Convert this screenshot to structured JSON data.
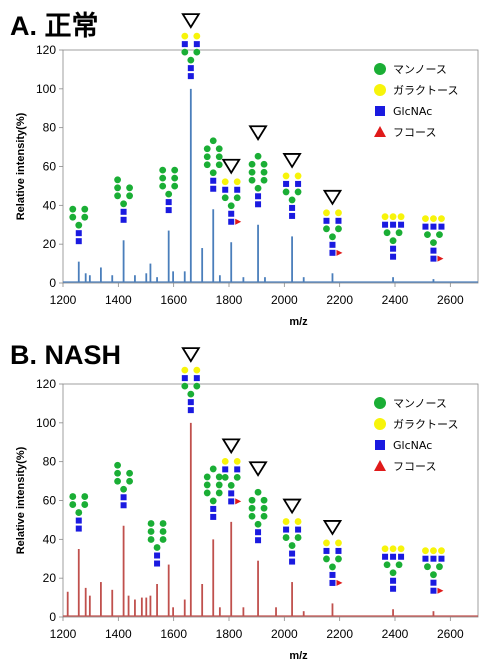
{
  "chart_data": [
    {
      "type": "line",
      "title": "A. 正常",
      "xlabel": "m/z",
      "ylabel": "Relative intensity(%)",
      "xlim": [
        1200,
        2700
      ],
      "ylim": [
        0,
        120
      ],
      "x_ticks": [
        "1200",
        "1400",
        "1600",
        "1800",
        "2000",
        "2200",
        "2400",
        "2600"
      ],
      "y_ticks": [
        "0",
        "20",
        "40",
        "60",
        "80",
        "100",
        "120"
      ],
      "color": "#4a7ebb",
      "peaks": [
        {
          "x": 1257,
          "y": 11
        },
        {
          "x": 1282,
          "y": 5
        },
        {
          "x": 1297,
          "y": 4
        },
        {
          "x": 1337,
          "y": 8
        },
        {
          "x": 1378,
          "y": 4
        },
        {
          "x": 1419,
          "y": 22
        },
        {
          "x": 1460,
          "y": 4
        },
        {
          "x": 1501,
          "y": 5
        },
        {
          "x": 1516,
          "y": 10
        },
        {
          "x": 1540,
          "y": 3
        },
        {
          "x": 1582,
          "y": 27
        },
        {
          "x": 1598,
          "y": 6
        },
        {
          "x": 1640,
          "y": 6
        },
        {
          "x": 1662,
          "y": 100
        },
        {
          "x": 1703,
          "y": 18
        },
        {
          "x": 1743,
          "y": 38
        },
        {
          "x": 1767,
          "y": 4
        },
        {
          "x": 1808,
          "y": 21
        },
        {
          "x": 1852,
          "y": 3
        },
        {
          "x": 1905,
          "y": 30
        },
        {
          "x": 1930,
          "y": 3
        },
        {
          "x": 2028,
          "y": 24
        },
        {
          "x": 2070,
          "y": 3
        },
        {
          "x": 2174,
          "y": 5
        },
        {
          "x": 2393,
          "y": 3
        },
        {
          "x": 2539,
          "y": 2
        }
      ],
      "marked_peaks": [
        1662,
        1808,
        1905,
        2028,
        2174
      ],
      "glycans": [
        {
          "x": 1257,
          "y": 20,
          "man": 5,
          "gal": 0,
          "fuc": false
        },
        {
          "x": 1419,
          "y": 31,
          "man": 6,
          "gal": 0,
          "fuc": false
        },
        {
          "x": 1582,
          "y": 36,
          "man": 7,
          "gal": 0,
          "fuc": false
        },
        {
          "x": 1662,
          "y": 105,
          "man": 3,
          "gal": 2,
          "fuc": false
        },
        {
          "x": 1743,
          "y": 47,
          "man": 8,
          "gal": 0,
          "fuc": false
        },
        {
          "x": 1808,
          "y": 30,
          "man": 3,
          "gal": 2,
          "fuc": true
        },
        {
          "x": 1905,
          "y": 39,
          "man": 9,
          "gal": 0,
          "fuc": false
        },
        {
          "x": 2028,
          "y": 33,
          "man": 3,
          "gal": 2,
          "fuc": false
        },
        {
          "x": 2174,
          "y": 14,
          "man": 3,
          "gal": 2,
          "fuc": true
        },
        {
          "x": 2393,
          "y": 12,
          "man": 3,
          "gal": 3,
          "fuc": false
        },
        {
          "x": 2539,
          "y": 11,
          "man": 3,
          "gal": 3,
          "fuc": true
        }
      ],
      "legend": [
        {
          "label": "マンノース",
          "shape": "circle",
          "color": "#1aae35"
        },
        {
          "label": "ガラクトース",
          "shape": "circle",
          "color": "#f7f40a"
        },
        {
          "label": "GlcNAc",
          "shape": "square",
          "color": "#1a1ae0"
        },
        {
          "label": "フコース",
          "shape": "triangle",
          "color": "#e01a1a"
        }
      ]
    },
    {
      "type": "line",
      "title": "B. NASH",
      "xlabel": "m/z",
      "ylabel": "Relative intensity(%)",
      "xlim": [
        1200,
        2700
      ],
      "ylim": [
        0,
        120
      ],
      "x_ticks": [
        "1200",
        "1400",
        "1600",
        "1800",
        "2000",
        "2200",
        "2400",
        "2600"
      ],
      "y_ticks": [
        "0",
        "20",
        "40",
        "60",
        "80",
        "100",
        "120"
      ],
      "color": "#c0504d",
      "peaks": [
        {
          "x": 1217,
          "y": 13
        },
        {
          "x": 1257,
          "y": 35
        },
        {
          "x": 1282,
          "y": 15
        },
        {
          "x": 1297,
          "y": 11
        },
        {
          "x": 1337,
          "y": 18
        },
        {
          "x": 1378,
          "y": 14
        },
        {
          "x": 1419,
          "y": 47
        },
        {
          "x": 1437,
          "y": 11
        },
        {
          "x": 1460,
          "y": 9
        },
        {
          "x": 1485,
          "y": 10
        },
        {
          "x": 1501,
          "y": 10
        },
        {
          "x": 1516,
          "y": 11
        },
        {
          "x": 1540,
          "y": 17
        },
        {
          "x": 1582,
          "y": 27
        },
        {
          "x": 1598,
          "y": 5
        },
        {
          "x": 1640,
          "y": 9
        },
        {
          "x": 1662,
          "y": 100
        },
        {
          "x": 1703,
          "y": 17
        },
        {
          "x": 1743,
          "y": 40
        },
        {
          "x": 1767,
          "y": 5
        },
        {
          "x": 1808,
          "y": 49
        },
        {
          "x": 1852,
          "y": 5
        },
        {
          "x": 1905,
          "y": 29
        },
        {
          "x": 1970,
          "y": 5
        },
        {
          "x": 2028,
          "y": 18
        },
        {
          "x": 2070,
          "y": 3
        },
        {
          "x": 2174,
          "y": 7
        },
        {
          "x": 2393,
          "y": 4
        },
        {
          "x": 2539,
          "y": 3
        }
      ],
      "marked_peaks": [
        1662,
        1808,
        1905,
        2028,
        2174
      ],
      "glycans": [
        {
          "x": 1257,
          "y": 44,
          "man": 5,
          "gal": 0,
          "fuc": false
        },
        {
          "x": 1419,
          "y": 56,
          "man": 6,
          "gal": 0,
          "fuc": false
        },
        {
          "x": 1540,
          "y": 26,
          "man": 7,
          "gal": 0,
          "fuc": false
        },
        {
          "x": 1662,
          "y": 105,
          "man": 3,
          "gal": 2,
          "fuc": false
        },
        {
          "x": 1743,
          "y": 50,
          "man": 8,
          "gal": 0,
          "fuc": false
        },
        {
          "x": 1808,
          "y": 58,
          "man": 3,
          "gal": 2,
          "fuc": true
        },
        {
          "x": 1905,
          "y": 38,
          "man": 9,
          "gal": 0,
          "fuc": false
        },
        {
          "x": 2028,
          "y": 27,
          "man": 3,
          "gal": 2,
          "fuc": false
        },
        {
          "x": 2174,
          "y": 16,
          "man": 3,
          "gal": 2,
          "fuc": true
        },
        {
          "x": 2393,
          "y": 13,
          "man": 3,
          "gal": 3,
          "fuc": false
        },
        {
          "x": 2539,
          "y": 12,
          "man": 3,
          "gal": 3,
          "fuc": true
        }
      ],
      "legend": [
        {
          "label": "マンノース",
          "shape": "circle",
          "color": "#1aae35"
        },
        {
          "label": "ガラクトース",
          "shape": "circle",
          "color": "#f7f40a"
        },
        {
          "label": "GlcNAc",
          "shape": "square",
          "color": "#1a1ae0"
        },
        {
          "label": "フコース",
          "shape": "triangle",
          "color": "#e01a1a"
        }
      ]
    }
  ]
}
